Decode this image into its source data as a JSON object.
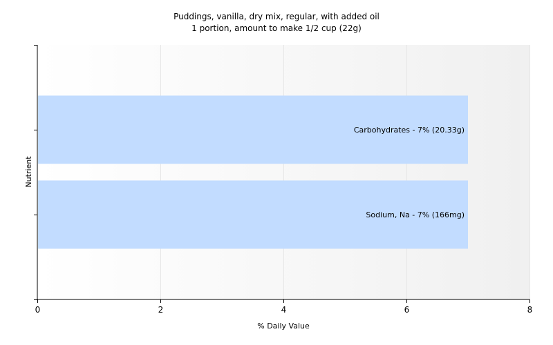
{
  "chart_data": {
    "type": "bar",
    "orientation": "horizontal",
    "title": "Puddings, vanilla, dry mix, regular, with added oil",
    "subtitle": "1 portion, amount to make 1/2 cup (22g)",
    "xlabel": "% Daily Value",
    "ylabel": "Nutrient",
    "xlim": [
      0,
      8
    ],
    "xticks": [
      "0",
      "2",
      "4",
      "6",
      "8"
    ],
    "grid": true,
    "bar_color": "#c2dcff",
    "categories": [
      "Carbohydrates",
      "Sodium, Na"
    ],
    "values": [
      7,
      7
    ],
    "data_labels": [
      "Carbohydrates - 7% (20.33g)",
      "Sodium, Na - 7% (166mg)"
    ]
  }
}
